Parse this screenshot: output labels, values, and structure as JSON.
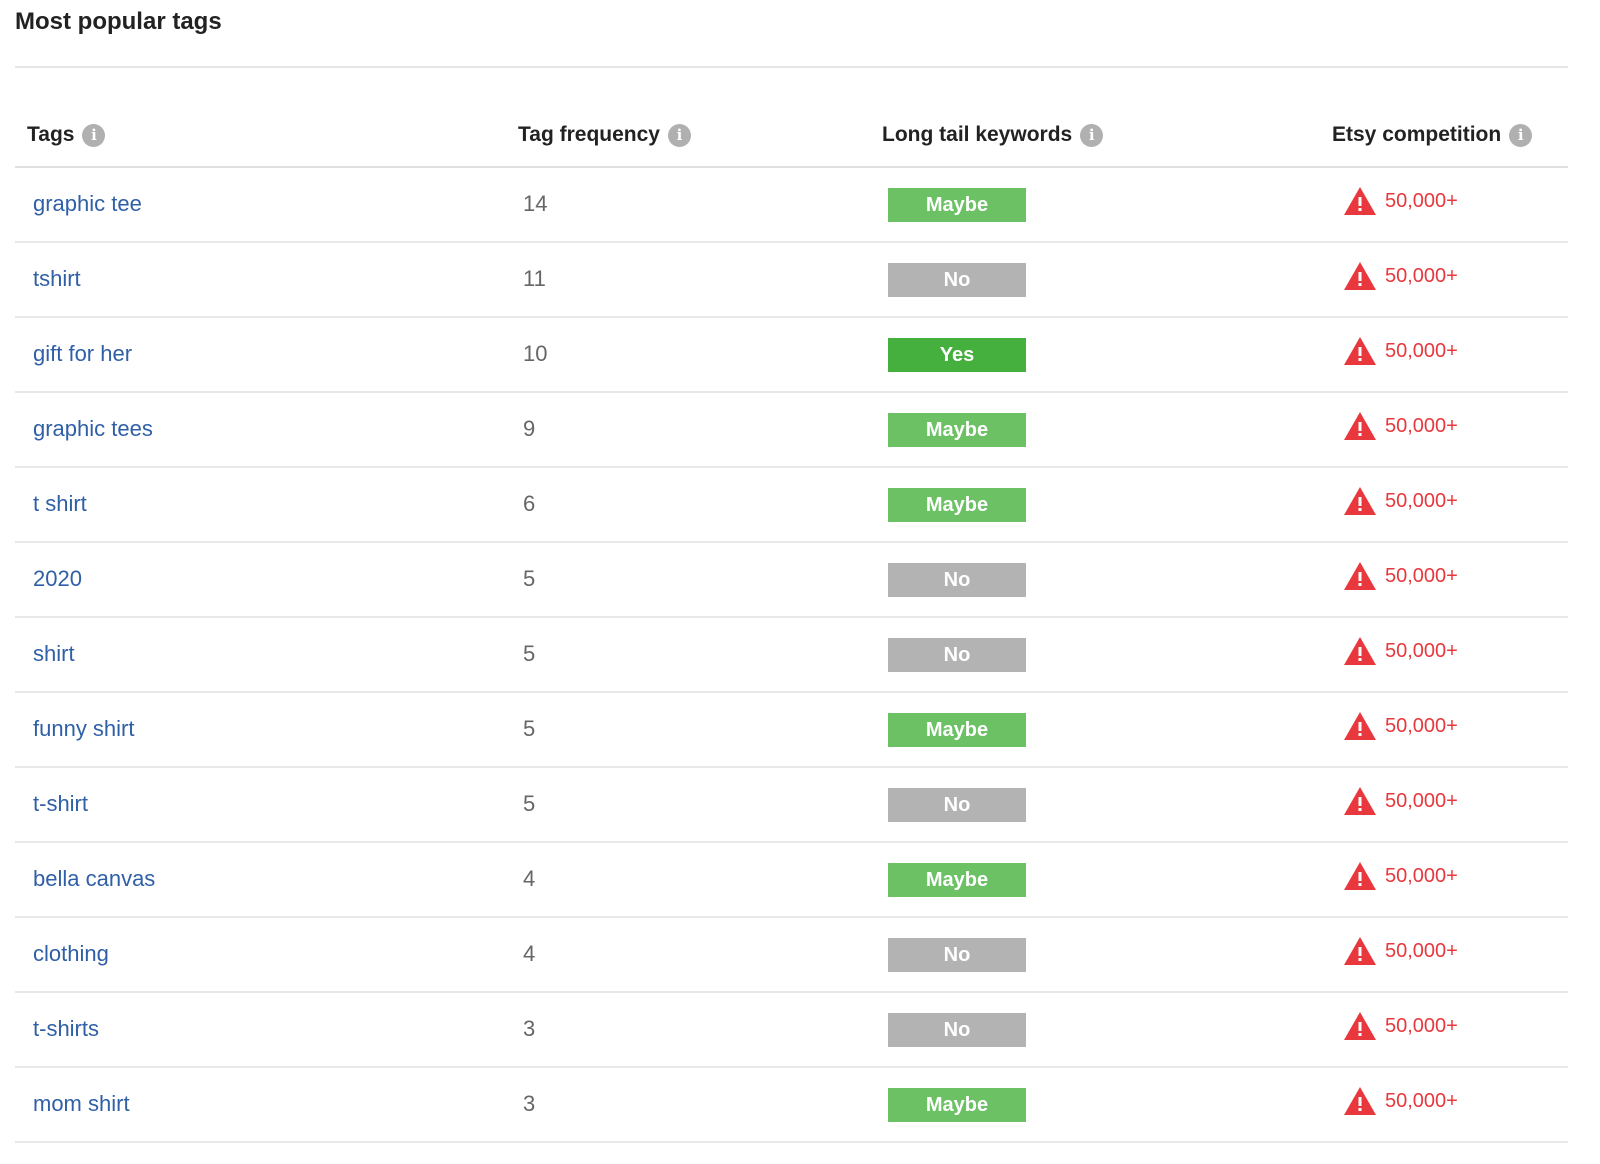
{
  "title": "Most popular tags",
  "columns": {
    "tags": "Tags",
    "frequency": "Tag frequency",
    "long_tail": "Long tail keywords",
    "competition": "Etsy competition"
  },
  "info_icon": "i",
  "colors": {
    "Maybe": "#6cc165",
    "No": "#b3b3b3",
    "Yes": "#46b03f",
    "link": "#2f5fa7",
    "warning": "#e8383d"
  },
  "rows": [
    {
      "tag": "graphic tee",
      "frequency": "14",
      "long_tail": "Maybe",
      "competition": "50,000+"
    },
    {
      "tag": "tshirt",
      "frequency": "11",
      "long_tail": "No",
      "competition": "50,000+"
    },
    {
      "tag": "gift for her",
      "frequency": "10",
      "long_tail": "Yes",
      "competition": "50,000+"
    },
    {
      "tag": "graphic tees",
      "frequency": "9",
      "long_tail": "Maybe",
      "competition": "50,000+"
    },
    {
      "tag": "t shirt",
      "frequency": "6",
      "long_tail": "Maybe",
      "competition": "50,000+"
    },
    {
      "tag": "2020",
      "frequency": "5",
      "long_tail": "No",
      "competition": "50,000+"
    },
    {
      "tag": "shirt",
      "frequency": "5",
      "long_tail": "No",
      "competition": "50,000+"
    },
    {
      "tag": "funny shirt",
      "frequency": "5",
      "long_tail": "Maybe",
      "competition": "50,000+"
    },
    {
      "tag": "t-shirt",
      "frequency": "5",
      "long_tail": "No",
      "competition": "50,000+"
    },
    {
      "tag": "bella canvas",
      "frequency": "4",
      "long_tail": "Maybe",
      "competition": "50,000+"
    },
    {
      "tag": "clothing",
      "frequency": "4",
      "long_tail": "No",
      "competition": "50,000+"
    },
    {
      "tag": "t-shirts",
      "frequency": "3",
      "long_tail": "No",
      "competition": "50,000+"
    },
    {
      "tag": "mom shirt",
      "frequency": "3",
      "long_tail": "Maybe",
      "competition": "50,000+"
    }
  ]
}
